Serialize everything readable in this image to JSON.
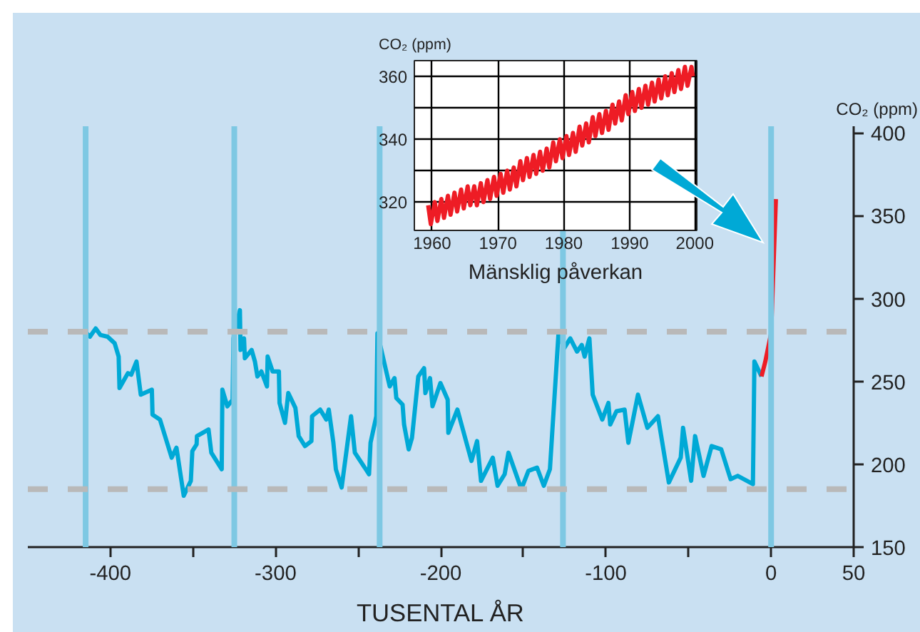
{
  "chart_data": [
    {
      "type": "line",
      "xlabel": "TUSENTAL ÅR",
      "ylabel": "CO₂ (ppm)",
      "xlim": [
        -450,
        50
      ],
      "ylim": [
        150,
        404
      ],
      "xticks": [
        -400,
        {
          "value": -350,
          "label": null
        },
        -300,
        {
          "value": -250,
          "label": null
        },
        -200,
        {
          "value": -150,
          "label": null
        },
        -100,
        {
          "value": -50,
          "label": null
        },
        0,
        50
      ],
      "yticks": [
        150,
        200,
        250,
        300,
        350,
        400
      ],
      "grid": false,
      "ref_lines": [
        {
          "axis": "x",
          "value": -415,
          "color": "#7ec8e3"
        },
        {
          "axis": "x",
          "value": -325,
          "color": "#7ec8e3"
        },
        {
          "axis": "x",
          "value": -237,
          "color": "#7ec8e3"
        },
        {
          "axis": "x",
          "value": -126,
          "color": "#7ec8e3"
        },
        {
          "axis": "x",
          "value": 0,
          "color": "#7ec8e3"
        },
        {
          "axis": "y",
          "value": 280,
          "color": "#b9b9b9",
          "line_style": "dashed"
        },
        {
          "axis": "y",
          "value": 185,
          "color": "#b9b9b9",
          "line_style": "dashed"
        }
      ],
      "series": [
        {
          "color": "#00a9d6",
          "x": [
            -415.3,
            -412.4,
            -408.9,
            -406,
            -401.7,
            -397.4,
            -395,
            -394.5,
            -389.4,
            -387.4,
            -384.2,
            -381.6,
            -374.9,
            -374.5,
            -370,
            -362.9,
            -360,
            -355.6,
            -351.3,
            -350.4,
            -347.8,
            -347.6,
            -340.6,
            -338.9,
            -332.6,
            -332.2,
            -329.2,
            -326,
            -325.5,
            -321.6,
            -321.2,
            -319.1,
            -318.6,
            -314.5,
            -312.5,
            -311,
            -308.6,
            -305.2,
            -304.8,
            -301.8,
            -298,
            -297.6,
            -294.3,
            -292.3,
            -288,
            -286,
            -282.2,
            -278.3,
            -277.9,
            -273,
            -269.3,
            -267.8,
            -265,
            -263.5,
            -260,
            -254.3,
            -252,
            -243.4,
            -242.5,
            -239,
            -238.3,
            -230.9,
            -228,
            -226.9,
            -223.1,
            -222.2,
            -219.4,
            -217.4,
            -213.6,
            -210.1,
            -209.3,
            -206.5,
            -205,
            -200.2,
            -195.8,
            -195.4,
            -189.9,
            -181.4,
            -178,
            -175.6,
            -168.5,
            -165.6,
            -161.3,
            -159,
            -151.2,
            -146.9,
            -141.7,
            -137.6,
            -133.9,
            -128.7,
            -125.3,
            -121.6,
            -117.5,
            -114.6,
            -112.9,
            -110,
            -108,
            -102.2,
            -98.5,
            -97.4,
            -93.6,
            -88.7,
            -86.4,
            -80.6,
            -74.9,
            -68.5,
            -61.9,
            -54.7,
            -53.3,
            -48.4,
            -46,
            -40.9,
            -36,
            -30.2,
            -24.5,
            -20.2,
            -11,
            -10.1,
            -5.8
          ],
          "values": [
            280,
            277,
            282,
            278,
            277,
            273,
            265,
            246,
            255,
            254,
            262,
            242,
            245,
            230,
            227,
            204,
            210,
            181,
            190,
            208,
            212,
            217,
            221,
            207,
            197,
            245,
            235,
            239,
            276,
            293,
            269,
            276,
            264,
            269,
            262,
            253,
            256,
            247,
            265,
            256,
            256,
            237,
            225,
            243,
            234,
            217,
            211,
            214,
            229,
            233,
            227,
            233,
            213,
            197,
            186,
            229,
            207,
            194,
            213,
            229,
            279,
            247,
            252,
            240,
            236,
            224,
            209,
            216,
            253,
            258,
            243,
            252,
            235,
            249,
            239,
            219,
            233,
            202,
            214,
            190,
            204,
            187,
            194,
            207,
            185,
            196,
            198,
            187,
            197,
            279,
            270,
            276,
            268,
            272,
            265,
            276,
            242,
            227,
            237,
            224,
            232,
            233,
            213,
            242,
            222,
            229,
            189,
            204,
            222,
            190,
            217,
            193,
            211,
            209,
            191,
            193,
            188,
            262,
            253
          ]
        },
        {
          "color": "#ee1c25",
          "x": [
            -5.8,
            -3.5,
            0,
            2.9
          ],
          "values": [
            253,
            262,
            279,
            360
          ]
        }
      ]
    },
    {
      "type": "line",
      "xlabel": "Mänsklig påverkan",
      "ylabel": "CO₂ (ppm)",
      "xlim": [
        1957.3,
        2000.2
      ],
      "ylim": [
        311,
        365
      ],
      "xticks": [
        1960,
        1970,
        1980,
        1990,
        2000
      ],
      "yticks": [
        320,
        {
          "value": 330,
          "label": null
        },
        340,
        {
          "value": 350,
          "label": null
        },
        360
      ],
      "grid": true,
      "series": [
        {
          "color": "#ee1c25",
          "x": [
            1959.4,
            1959.8,
            1960.4,
            1960.8,
            1961.4,
            1961.8,
            1962.4,
            1962.8,
            1963.4,
            1963.8,
            1964.4,
            1964.8,
            1965.4,
            1965.8,
            1966.4,
            1966.8,
            1967.4,
            1967.8,
            1968.4,
            1968.8,
            1969.4,
            1969.8,
            1970.4,
            1970.8,
            1971.4,
            1971.8,
            1972.4,
            1972.8,
            1973.4,
            1973.8,
            1974.4,
            1974.8,
            1975.4,
            1975.8,
            1976.4,
            1976.8,
            1977.4,
            1977.8,
            1978.4,
            1978.8,
            1979.4,
            1979.8,
            1980.4,
            1980.8,
            1981.4,
            1981.8,
            1982.4,
            1982.8,
            1983.4,
            1983.8,
            1984.4,
            1984.8,
            1985.4,
            1985.8,
            1986.4,
            1986.8,
            1987.4,
            1987.8,
            1988.4,
            1988.8,
            1989.4,
            1989.8,
            1990.4,
            1990.8,
            1991.4,
            1991.8,
            1992.4,
            1992.8,
            1993.4,
            1993.8,
            1994.4,
            1994.8,
            1995.4,
            1995.8,
            1996.4,
            1996.8,
            1997.4,
            1997.8,
            1998.4,
            1998.8,
            1999.4,
            1999.6
          ],
          "values": [
            319,
            313,
            320,
            314,
            321,
            315,
            322,
            316,
            323,
            317,
            324,
            318,
            325,
            319,
            325,
            319,
            326,
            320,
            327,
            321,
            328,
            322,
            329,
            323,
            330,
            324,
            331,
            325,
            333,
            327,
            334,
            328,
            335,
            329,
            336,
            330,
            337,
            331,
            339,
            333,
            340,
            334,
            341,
            335,
            342,
            336,
            344,
            338,
            345,
            339,
            347,
            341,
            348,
            342,
            349,
            343,
            351,
            345,
            352,
            346,
            354,
            348,
            355,
            349,
            356,
            350,
            357,
            351,
            358,
            352,
            359,
            353,
            360,
            354,
            361,
            355,
            362,
            356,
            363,
            357,
            363,
            360
          ]
        }
      ]
    }
  ]
}
